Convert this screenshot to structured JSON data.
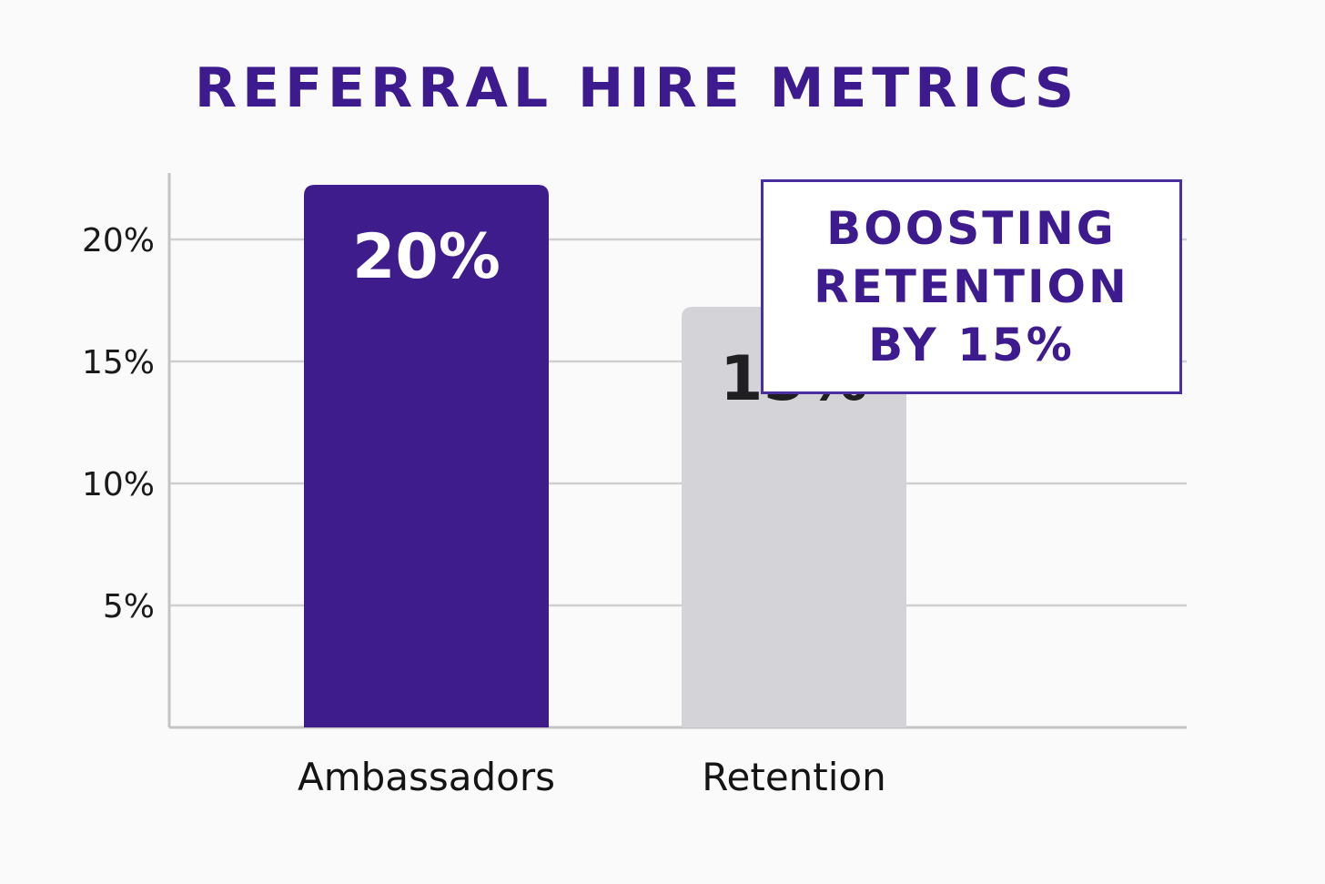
{
  "chart_data": {
    "type": "bar",
    "title": "REFERRAL HIRE METRICS",
    "categories": [
      "Ambassadors",
      "Retention"
    ],
    "values": [
      20,
      15
    ],
    "data_labels": [
      "20%",
      "15%"
    ],
    "bar_colors": [
      "#3f1c8c",
      "#d4d3d7"
    ],
    "data_label_colors": [
      "#ffffff",
      "#1f1f22"
    ],
    "y_ticks": [
      5,
      10,
      15,
      20
    ],
    "y_tick_labels": [
      "5%",
      "10%",
      "15%",
      "20%"
    ],
    "ylim": [
      0,
      20
    ],
    "grid": true,
    "xlabel": "",
    "ylabel": ""
  },
  "callout": {
    "lines": [
      "BOOSTING",
      "RETENTION",
      "BY 15%"
    ]
  },
  "colors": {
    "accent": "#3d1a8e",
    "grid": "#cfcfcf",
    "axis": "#c4c4c4"
  }
}
